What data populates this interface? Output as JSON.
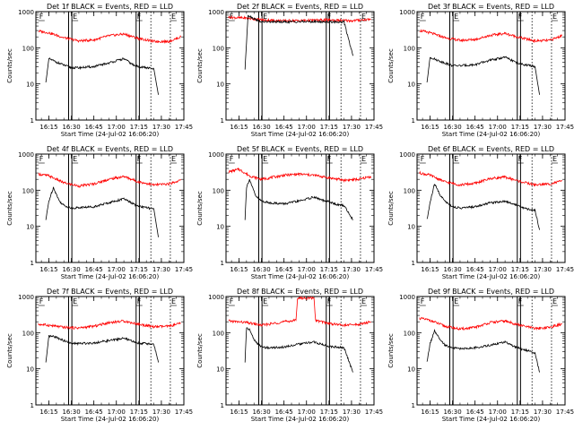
{
  "chart_data": {
    "type": "line",
    "yscale": "log",
    "ylim": [
      1,
      1000
    ],
    "xlim": [
      "16:06:20",
      "17:45:00"
    ],
    "x_ticks": [
      "16:15",
      "16:30",
      "16:45",
      "17:00",
      "17:15",
      "17:30",
      "17:45"
    ],
    "y_ticks": [
      "1",
      "10",
      "100",
      "1000"
    ],
    "ylabel": "Counts/sec",
    "xlabel": "Start Time (24-Jul-02 16:06:20)",
    "series_colors": {
      "events": "#000000",
      "lld": "#ff0000"
    },
    "marker_lines": {
      "solid": [
        "16:28:10",
        "16:30:20",
        "17:13:10",
        "17:15:20"
      ],
      "dotted": [
        "17:23:00",
        "17:36:00"
      ],
      "flag_labels": [
        "F",
        "E",
        "F",
        "E"
      ]
    },
    "panels": [
      {
        "title": "Det 1f BLACK = Events, RED = LLD",
        "events": {
          "x": [
            "16:13",
            "16:15",
            "16:20",
            "16:25",
            "16:30",
            "16:35",
            "16:45",
            "16:55",
            "17:05",
            "17:12",
            "17:15",
            "17:20",
            "17:25",
            "17:28"
          ],
          "y": [
            11,
            50,
            40,
            33,
            28,
            28,
            30,
            38,
            50,
            32,
            30,
            28,
            26,
            5
          ]
        },
        "lld": {
          "x": [
            "16:08",
            "16:15",
            "16:25",
            "16:35",
            "16:45",
            "16:55",
            "17:05",
            "17:15",
            "17:25",
            "17:35",
            "17:43"
          ],
          "y": [
            290,
            260,
            190,
            155,
            165,
            215,
            240,
            180,
            150,
            150,
            200
          ]
        }
      },
      {
        "title": "Det 2f BLACK = Events, RED = LLD",
        "events": {
          "x": [
            "16:19",
            "16:21",
            "16:25",
            "16:30",
            "16:45",
            "17:00",
            "17:15",
            "17:25",
            "17:31"
          ],
          "y": [
            25,
            800,
            640,
            520,
            520,
            530,
            520,
            520,
            60
          ]
        },
        "lld": {
          "x": [
            "16:08",
            "16:20",
            "16:30",
            "16:45",
            "17:00",
            "17:15",
            "17:30",
            "17:43"
          ],
          "y": [
            700,
            660,
            590,
            560,
            570,
            590,
            560,
            620
          ]
        }
      },
      {
        "title": "Det 3f BLACK = Events, RED = LLD",
        "events": {
          "x": [
            "16:13",
            "16:15",
            "16:20",
            "16:25",
            "16:30",
            "16:35",
            "16:45",
            "16:55",
            "17:05",
            "17:12",
            "17:15",
            "17:20",
            "17:25",
            "17:28"
          ],
          "y": [
            11,
            55,
            45,
            38,
            32,
            32,
            34,
            45,
            55,
            40,
            36,
            33,
            30,
            5
          ]
        },
        "lld": {
          "x": [
            "16:08",
            "16:15",
            "16:25",
            "16:35",
            "16:45",
            "16:55",
            "17:05",
            "17:15",
            "17:25",
            "17:35",
            "17:43"
          ],
          "y": [
            300,
            260,
            190,
            160,
            170,
            220,
            250,
            190,
            155,
            160,
            220
          ]
        }
      },
      {
        "title": "Det 4f BLACK = Events, RED = LLD",
        "events": {
          "x": [
            "16:13",
            "16:15",
            "16:18",
            "16:22",
            "16:25",
            "16:30",
            "16:35",
            "16:45",
            "16:55",
            "17:05",
            "17:12",
            "17:15",
            "17:20",
            "17:25",
            "17:28"
          ],
          "y": [
            15,
            50,
            120,
            50,
            38,
            32,
            33,
            35,
            45,
            58,
            40,
            36,
            33,
            30,
            5
          ]
        },
        "lld": {
          "x": [
            "16:08",
            "16:15",
            "16:25",
            "16:35",
            "16:45",
            "16:55",
            "17:05",
            "17:15",
            "17:25",
            "17:35",
            "17:43"
          ],
          "y": [
            280,
            250,
            160,
            130,
            150,
            200,
            240,
            170,
            140,
            150,
            190
          ]
        }
      },
      {
        "title": "Det 5f BLACK = Events, RED = LLD",
        "events": {
          "x": [
            "16:19",
            "16:20",
            "16:22",
            "16:26",
            "16:30",
            "16:35",
            "16:45",
            "16:55",
            "17:05",
            "17:12",
            "17:15",
            "17:20",
            "17:25",
            "17:31"
          ],
          "y": [
            15,
            120,
            200,
            70,
            50,
            45,
            42,
            50,
            65,
            50,
            48,
            40,
            38,
            15
          ]
        },
        "lld": {
          "x": [
            "16:08",
            "16:15",
            "16:22",
            "16:30",
            "16:45",
            "16:55",
            "17:05",
            "17:15",
            "17:25",
            "17:35",
            "17:43"
          ],
          "y": [
            320,
            380,
            250,
            200,
            260,
            280,
            260,
            220,
            190,
            200,
            240
          ]
        }
      },
      {
        "title": "Det 6f BLACK = Events, RED = LLD",
        "events": {
          "x": [
            "16:13",
            "16:15",
            "16:18",
            "16:22",
            "16:25",
            "16:30",
            "16:35",
            "16:45",
            "16:55",
            "17:05",
            "17:12",
            "17:15",
            "17:20",
            "17:25",
            "17:28"
          ],
          "y": [
            15,
            45,
            150,
            70,
            50,
            35,
            32,
            35,
            45,
            50,
            40,
            35,
            30,
            28,
            8
          ]
        },
        "lld": {
          "x": [
            "16:08",
            "16:15",
            "16:25",
            "16:35",
            "16:45",
            "16:55",
            "17:05",
            "17:15",
            "17:25",
            "17:35",
            "17:43"
          ],
          "y": [
            300,
            260,
            170,
            140,
            155,
            210,
            230,
            175,
            140,
            150,
            180
          ]
        }
      },
      {
        "title": "Det 7f BLACK = Events, RED = LLD",
        "events": {
          "x": [
            "16:13",
            "16:15",
            "16:20",
            "16:25",
            "16:30",
            "16:35",
            "16:45",
            "16:55",
            "17:05",
            "17:12",
            "17:15",
            "17:20",
            "17:25",
            "17:28"
          ],
          "y": [
            15,
            80,
            75,
            60,
            50,
            50,
            52,
            60,
            70,
            55,
            52,
            50,
            48,
            15
          ]
        },
        "lld": {
          "x": [
            "16:08",
            "16:15",
            "16:25",
            "16:35",
            "16:45",
            "16:55",
            "17:05",
            "17:15",
            "17:25",
            "17:35",
            "17:43"
          ],
          "y": [
            170,
            160,
            140,
            135,
            150,
            190,
            210,
            170,
            145,
            150,
            180
          ]
        }
      },
      {
        "title": "Det 8f BLACK = Events, RED = LLD",
        "events": {
          "x": [
            "16:19",
            "16:20",
            "16:22",
            "16:26",
            "16:30",
            "16:35",
            "16:45",
            "16:55",
            "17:05",
            "17:12",
            "17:15",
            "17:20",
            "17:25",
            "17:31"
          ],
          "y": [
            15,
            140,
            120,
            55,
            40,
            38,
            40,
            48,
            55,
            45,
            42,
            40,
            38,
            8
          ]
        },
        "lld": {
          "x": [
            "16:08",
            "16:20",
            "16:30",
            "16:45",
            "16:53",
            "16:54",
            "17:05",
            "17:06",
            "17:15",
            "17:25",
            "17:35",
            "17:43"
          ],
          "y": [
            210,
            190,
            160,
            200,
            220,
            900,
            900,
            220,
            180,
            160,
            170,
            200
          ]
        }
      },
      {
        "title": "Det 9f BLACK = Events, RED = LLD",
        "events": {
          "x": [
            "16:13",
            "16:15",
            "16:18",
            "16:22",
            "16:25",
            "16:30",
            "16:35",
            "16:45",
            "16:55",
            "17:05",
            "17:12",
            "17:15",
            "17:20",
            "17:25",
            "17:28"
          ],
          "y": [
            15,
            50,
            110,
            60,
            45,
            38,
            36,
            38,
            45,
            55,
            40,
            36,
            32,
            28,
            8
          ]
        },
        "lld": {
          "x": [
            "16:08",
            "16:15",
            "16:25",
            "16:35",
            "16:45",
            "16:55",
            "17:05",
            "17:15",
            "17:25",
            "17:35",
            "17:43"
          ],
          "y": [
            250,
            220,
            150,
            125,
            140,
            190,
            210,
            160,
            130,
            140,
            175
          ]
        }
      }
    ]
  }
}
